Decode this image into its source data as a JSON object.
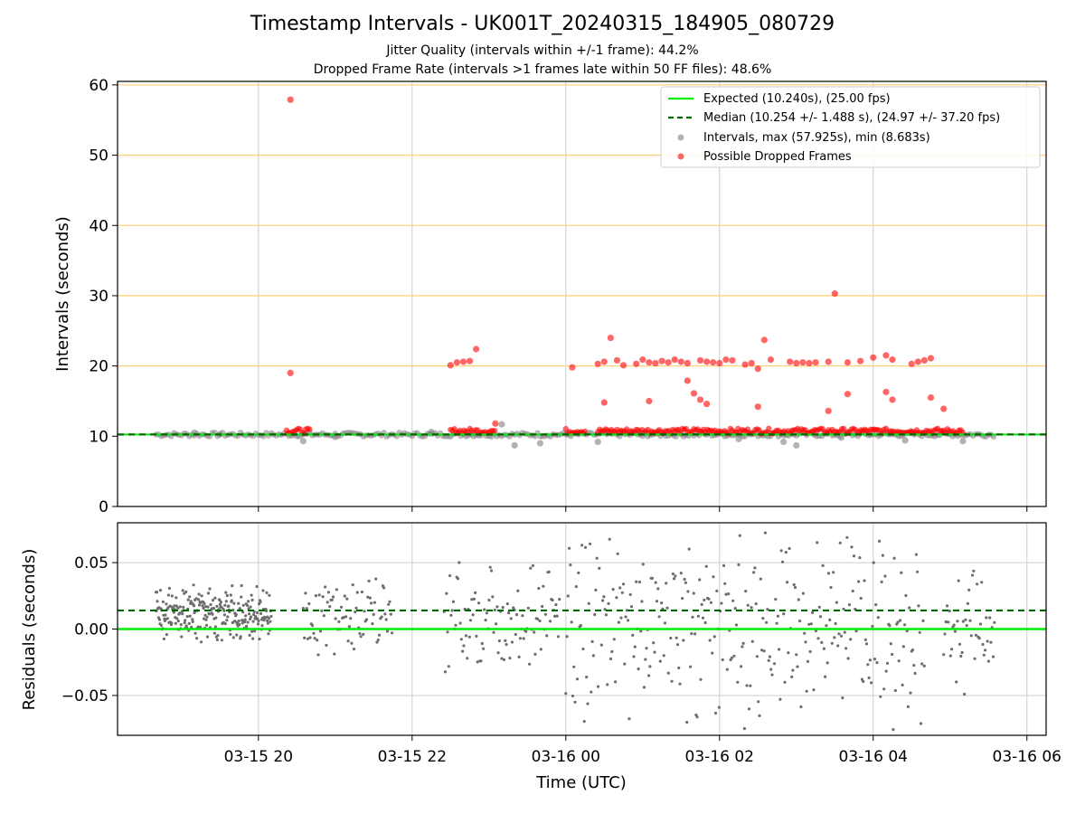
{
  "title": "Timestamp Intervals - UK001T_20240315_184905_080729",
  "subtitle_1": "Jitter Quality (intervals within +/-1 frame): 44.2%",
  "subtitle_2": "Dropped Frame Rate (intervals >1 frames late within 50 FF files): 48.6%",
  "colors": {
    "expected": "#00ee00",
    "median": "#006400",
    "intervals": "#808080",
    "dropped": "#ff0000",
    "hband": "#ffd27f",
    "grid": "#cccccc"
  },
  "chart_data": [
    {
      "type": "scatter",
      "panel": "intervals",
      "ylabel": "Intervals (seconds)",
      "xlim": [
        "2024-03-15 18:10",
        "2024-03-16 06:15"
      ],
      "ylim": [
        0,
        60.5
      ],
      "yticks": [
        0,
        10,
        20,
        30,
        40,
        50,
        60
      ],
      "xticks": [
        "03-15 20",
        "03-15 22",
        "03-16 00",
        "03-16 02",
        "03-16 04",
        "03-16 06"
      ],
      "horizontal_bands": [
        20,
        30,
        40,
        50,
        60
      ],
      "grid": "vertical",
      "legend_position": "top-right",
      "legend": [
        "Expected (10.240s), (25.00 fps)",
        "Median (10.254 +/- 1.488 s), (24.97 +/- 37.20 fps)",
        "Intervals, max (57.925s), min (8.683s)",
        "Possible Dropped Frames"
      ],
      "expected_line": 10.24,
      "median_line": 10.254,
      "series": [
        {
          "name": "Intervals, max (57.925s), min (8.683s)",
          "x": [
            "2024-03-15 19:10",
            "2024-03-15 19:30",
            "2024-03-15 20:35",
            "2024-03-15 21:00",
            "2024-03-15 22:15",
            "2024-03-15 23:10",
            "2024-03-15 23:20",
            "2024-03-15 23:40",
            "2024-03-16 00:25",
            "2024-03-16 01:00",
            "2024-03-16 02:15",
            "2024-03-16 02:50",
            "2024-03-16 03:00",
            "2024-03-16 03:35",
            "2024-03-16 04:25",
            "2024-03-16 05:10"
          ],
          "y": [
            10.5,
            10.3,
            9.3,
            9.9,
            10.6,
            11.7,
            8.7,
            9.0,
            9.2,
            10.1,
            9.6,
            9.2,
            8.7,
            9.8,
            9.4,
            9.3
          ]
        },
        {
          "name": "Possible Dropped Frames",
          "x": [
            "2024-03-15 20:25",
            "2024-03-15 20:25",
            "2024-03-15 22:30",
            "2024-03-15 22:35",
            "2024-03-15 22:40",
            "2024-03-15 22:45",
            "2024-03-15 22:50",
            "2024-03-15 23:05",
            "2024-03-16 00:05",
            "2024-03-16 00:25",
            "2024-03-16 00:30",
            "2024-03-16 00:35",
            "2024-03-16 00:40",
            "2024-03-16 00:45",
            "2024-03-16 00:55",
            "2024-03-16 01:00",
            "2024-03-16 01:05",
            "2024-03-16 01:10",
            "2024-03-16 01:15",
            "2024-03-16 01:20",
            "2024-03-16 01:25",
            "2024-03-16 01:30",
            "2024-03-16 01:35",
            "2024-03-16 01:45",
            "2024-03-16 01:50",
            "2024-03-16 01:55",
            "2024-03-16 02:00",
            "2024-03-16 02:05",
            "2024-03-16 02:10",
            "2024-03-16 02:20",
            "2024-03-16 02:25",
            "2024-03-16 02:30",
            "2024-03-16 02:35",
            "2024-03-16 02:40",
            "2024-03-16 02:55",
            "2024-03-16 03:00",
            "2024-03-16 03:05",
            "2024-03-16 03:10",
            "2024-03-16 03:15",
            "2024-03-16 03:25",
            "2024-03-16 03:30",
            "2024-03-16 03:40",
            "2024-03-16 03:50",
            "2024-03-16 04:00",
            "2024-03-16 04:10",
            "2024-03-16 04:15",
            "2024-03-16 04:30",
            "2024-03-16 04:35",
            "2024-03-16 04:40",
            "2024-03-16 04:45",
            "2024-03-16 01:35",
            "2024-03-16 01:40",
            "2024-03-16 01:45",
            "2024-03-16 01:50",
            "2024-03-16 00:30",
            "2024-03-16 01:05",
            "2024-03-16 02:30",
            "2024-03-16 03:25",
            "2024-03-16 03:40",
            "2024-03-16 04:15",
            "2024-03-16 04:10",
            "2024-03-16 04:45",
            "2024-03-16 04:55"
          ],
          "y": [
            57.9,
            19.0,
            20.1,
            20.5,
            20.6,
            20.7,
            22.4,
            11.8,
            19.8,
            20.3,
            20.6,
            24.0,
            20.8,
            20.1,
            20.3,
            20.9,
            20.5,
            20.4,
            20.7,
            20.5,
            20.9,
            20.6,
            20.4,
            20.8,
            20.6,
            20.5,
            20.4,
            20.9,
            20.8,
            20.2,
            20.4,
            19.6,
            23.7,
            20.9,
            20.6,
            20.4,
            20.5,
            20.4,
            20.5,
            20.6,
            30.3,
            20.5,
            20.7,
            21.2,
            21.5,
            20.9,
            20.3,
            20.6,
            20.8,
            21.1,
            17.9,
            16.1,
            15.2,
            14.6,
            14.8,
            15.0,
            14.2,
            13.6,
            16.0,
            15.2,
            16.3,
            15.5,
            13.9
          ]
        }
      ]
    },
    {
      "type": "scatter",
      "panel": "residuals",
      "xlabel": "Time (UTC)",
      "ylabel": "Residuals (seconds)",
      "ylim": [
        -0.08,
        0.08
      ],
      "yticks": [
        "0.05",
        "0.00",
        "−0.05"
      ],
      "ytick_values": [
        0.05,
        0.0,
        -0.05
      ],
      "xticks": [
        "03-15 20",
        "03-15 22",
        "03-16 00",
        "03-16 02",
        "03-16 04",
        "03-16 06"
      ],
      "grid": "both",
      "expected_line": 0.0,
      "median_line": 0.014
    }
  ]
}
